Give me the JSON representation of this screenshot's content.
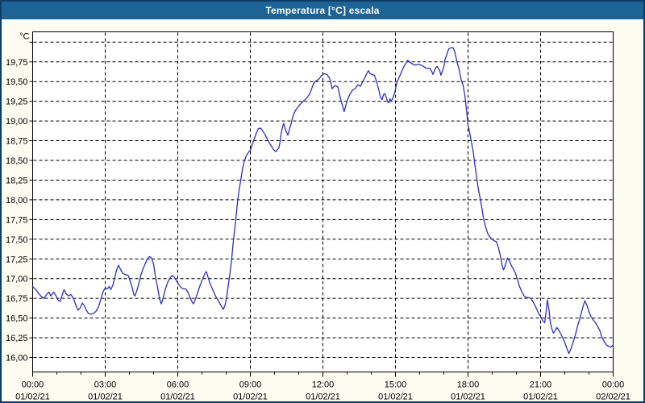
{
  "window": {
    "title": "Temperatura [°C] escala"
  },
  "colors": {
    "window_border": "#0d3c6b",
    "title_bar_bg": "#1d6496",
    "title_text": "#ffffff",
    "margin_bg": "#fcfcf1",
    "plot_bg": "#ffffff",
    "grid_and_text": "#000000",
    "series_line": "#2e2ec0"
  },
  "chart_data": {
    "type": "line",
    "title": "Temperatura [°C] escala",
    "grid": {
      "style": "dashed",
      "color": "#000000",
      "visible": true
    },
    "legend": "none",
    "y_axis": {
      "unit_label": "°C",
      "min": 16.0,
      "max": 20.0,
      "tick_step": 0.25,
      "decimal_separator": ",",
      "tick_labels": [
        "16,00",
        "16,25",
        "16,50",
        "16,75",
        "17,00",
        "17,25",
        "17,50",
        "17,75",
        "18,00",
        "18,25",
        "18,50",
        "18,75",
        "19,00",
        "19,25",
        "19,50",
        "19,75"
      ],
      "unlabeled_top_gridline": 20.0
    },
    "x_axis": {
      "range_hours": [
        0,
        24
      ],
      "minor_tick_interval_hours": 1,
      "major_ticks": [
        {
          "hour": 0,
          "time": "00:00",
          "date": "01/02/21"
        },
        {
          "hour": 3,
          "time": "03:00",
          "date": "01/02/21"
        },
        {
          "hour": 6,
          "time": "06:00",
          "date": "01/02/21"
        },
        {
          "hour": 9,
          "time": "09:00",
          "date": "01/02/21"
        },
        {
          "hour": 12,
          "time": "12:00",
          "date": "01/02/21"
        },
        {
          "hour": 15,
          "time": "15:00",
          "date": "01/02/21"
        },
        {
          "hour": 18,
          "time": "18:00",
          "date": "01/02/21"
        },
        {
          "hour": 21,
          "time": "21:00",
          "date": "01/02/21"
        },
        {
          "hour": 24,
          "time": "00:00",
          "date": "02/02/21"
        }
      ]
    },
    "series": [
      {
        "name": "Temperatura",
        "color": "#2e2ec0",
        "points": [
          [
            0.0,
            16.9
          ],
          [
            0.13,
            16.86
          ],
          [
            0.25,
            16.81
          ],
          [
            0.37,
            16.77
          ],
          [
            0.47,
            16.75
          ],
          [
            0.58,
            16.8
          ],
          [
            0.67,
            16.83
          ],
          [
            0.75,
            16.78
          ],
          [
            0.87,
            16.83
          ],
          [
            0.97,
            16.78
          ],
          [
            1.05,
            16.73
          ],
          [
            1.13,
            16.71
          ],
          [
            1.22,
            16.79
          ],
          [
            1.3,
            16.86
          ],
          [
            1.38,
            16.81
          ],
          [
            1.47,
            16.78
          ],
          [
            1.58,
            16.8
          ],
          [
            1.7,
            16.74
          ],
          [
            1.8,
            16.65
          ],
          [
            1.88,
            16.6
          ],
          [
            1.97,
            16.63
          ],
          [
            2.05,
            16.69
          ],
          [
            2.13,
            16.66
          ],
          [
            2.22,
            16.6
          ],
          [
            2.3,
            16.56
          ],
          [
            2.42,
            16.55
          ],
          [
            2.53,
            16.56
          ],
          [
            2.63,
            16.59
          ],
          [
            2.72,
            16.64
          ],
          [
            2.82,
            16.74
          ],
          [
            2.92,
            16.84
          ],
          [
            3.0,
            16.88
          ],
          [
            3.08,
            16.87
          ],
          [
            3.17,
            16.9
          ],
          [
            3.23,
            16.86
          ],
          [
            3.32,
            16.92
          ],
          [
            3.4,
            17.02
          ],
          [
            3.48,
            17.12
          ],
          [
            3.55,
            17.17
          ],
          [
            3.63,
            17.12
          ],
          [
            3.72,
            17.07
          ],
          [
            3.83,
            17.05
          ],
          [
            3.95,
            17.04
          ],
          [
            4.03,
            16.97
          ],
          [
            4.12,
            16.88
          ],
          [
            4.18,
            16.8
          ],
          [
            4.23,
            16.78
          ],
          [
            4.32,
            16.86
          ],
          [
            4.4,
            16.95
          ],
          [
            4.48,
            17.05
          ],
          [
            4.57,
            17.13
          ],
          [
            4.67,
            17.2
          ],
          [
            4.75,
            17.25
          ],
          [
            4.83,
            17.28
          ],
          [
            4.92,
            17.26
          ],
          [
            5.0,
            17.18
          ],
          [
            5.08,
            17.02
          ],
          [
            5.17,
            16.88
          ],
          [
            5.25,
            16.74
          ],
          [
            5.32,
            16.68
          ],
          [
            5.4,
            16.76
          ],
          [
            5.48,
            16.86
          ],
          [
            5.58,
            16.95
          ],
          [
            5.68,
            17.01
          ],
          [
            5.77,
            17.04
          ],
          [
            5.85,
            17.02
          ],
          [
            5.95,
            16.97
          ],
          [
            6.03,
            16.93
          ],
          [
            6.13,
            16.89
          ],
          [
            6.23,
            16.87
          ],
          [
            6.33,
            16.87
          ],
          [
            6.43,
            16.82
          ],
          [
            6.52,
            16.75
          ],
          [
            6.6,
            16.7
          ],
          [
            6.65,
            16.68
          ],
          [
            6.73,
            16.74
          ],
          [
            6.83,
            16.83
          ],
          [
            6.93,
            16.92
          ],
          [
            7.03,
            17.0
          ],
          [
            7.13,
            17.07
          ],
          [
            7.18,
            17.09
          ],
          [
            7.25,
            17.02
          ],
          [
            7.33,
            16.94
          ],
          [
            7.43,
            16.87
          ],
          [
            7.53,
            16.8
          ],
          [
            7.63,
            16.74
          ],
          [
            7.73,
            16.69
          ],
          [
            7.82,
            16.64
          ],
          [
            7.88,
            16.61
          ],
          [
            7.95,
            16.66
          ],
          [
            8.02,
            16.76
          ],
          [
            8.08,
            16.9
          ],
          [
            8.15,
            17.05
          ],
          [
            8.22,
            17.22
          ],
          [
            8.28,
            17.42
          ],
          [
            8.35,
            17.62
          ],
          [
            8.42,
            17.82
          ],
          [
            8.48,
            18.0
          ],
          [
            8.55,
            18.15
          ],
          [
            8.62,
            18.28
          ],
          [
            8.68,
            18.4
          ],
          [
            8.75,
            18.49
          ],
          [
            8.83,
            18.56
          ],
          [
            8.92,
            18.6
          ],
          [
            9.0,
            18.63
          ],
          [
            9.08,
            18.7
          ],
          [
            9.17,
            18.78
          ],
          [
            9.25,
            18.85
          ],
          [
            9.33,
            18.9
          ],
          [
            9.42,
            18.91
          ],
          [
            9.5,
            18.88
          ],
          [
            9.62,
            18.82
          ],
          [
            9.72,
            18.76
          ],
          [
            9.83,
            18.7
          ],
          [
            9.95,
            18.64
          ],
          [
            10.05,
            18.61
          ],
          [
            10.13,
            18.64
          ],
          [
            10.18,
            18.66
          ],
          [
            10.22,
            18.72
          ],
          [
            10.28,
            18.85
          ],
          [
            10.33,
            18.92
          ],
          [
            10.38,
            18.97
          ],
          [
            10.45,
            18.89
          ],
          [
            10.55,
            18.82
          ],
          [
            10.67,
            18.95
          ],
          [
            10.78,
            19.08
          ],
          [
            10.88,
            19.14
          ],
          [
            11.0,
            19.19
          ],
          [
            11.12,
            19.23
          ],
          [
            11.22,
            19.26
          ],
          [
            11.33,
            19.29
          ],
          [
            11.45,
            19.34
          ],
          [
            11.5,
            19.38
          ],
          [
            11.62,
            19.48
          ],
          [
            11.72,
            19.51
          ],
          [
            11.83,
            19.53
          ],
          [
            11.95,
            19.58
          ],
          [
            12.05,
            19.6
          ],
          [
            12.17,
            19.59
          ],
          [
            12.28,
            19.54
          ],
          [
            12.33,
            19.48
          ],
          [
            12.38,
            19.41
          ],
          [
            12.5,
            19.45
          ],
          [
            12.62,
            19.43
          ],
          [
            12.72,
            19.29
          ],
          [
            12.83,
            19.17
          ],
          [
            12.88,
            19.12
          ],
          [
            13.0,
            19.26
          ],
          [
            13.12,
            19.34
          ],
          [
            13.22,
            19.39
          ],
          [
            13.33,
            19.41
          ],
          [
            13.45,
            19.46
          ],
          [
            13.55,
            19.44
          ],
          [
            13.67,
            19.51
          ],
          [
            13.78,
            19.58
          ],
          [
            13.88,
            19.64
          ],
          [
            13.95,
            19.6
          ],
          [
            14.05,
            19.59
          ],
          [
            14.13,
            19.58
          ],
          [
            14.22,
            19.5
          ],
          [
            14.28,
            19.43
          ],
          [
            14.33,
            19.37
          ],
          [
            14.38,
            19.3
          ],
          [
            14.45,
            19.27
          ],
          [
            14.5,
            19.33
          ],
          [
            14.55,
            19.35
          ],
          [
            14.62,
            19.3
          ],
          [
            14.67,
            19.25
          ],
          [
            14.72,
            19.23
          ],
          [
            14.78,
            19.28
          ],
          [
            14.83,
            19.25
          ],
          [
            14.88,
            19.28
          ],
          [
            14.95,
            19.34
          ],
          [
            15.0,
            19.4
          ],
          [
            15.05,
            19.48
          ],
          [
            15.12,
            19.53
          ],
          [
            15.22,
            19.6
          ],
          [
            15.33,
            19.68
          ],
          [
            15.45,
            19.74
          ],
          [
            15.5,
            19.77
          ],
          [
            15.62,
            19.74
          ],
          [
            15.72,
            19.72
          ],
          [
            15.83,
            19.71
          ],
          [
            15.95,
            19.72
          ],
          [
            16.05,
            19.71
          ],
          [
            16.17,
            19.69
          ],
          [
            16.28,
            19.67
          ],
          [
            16.42,
            19.67
          ],
          [
            16.5,
            19.63
          ],
          [
            16.55,
            19.59
          ],
          [
            16.67,
            19.68
          ],
          [
            16.72,
            19.69
          ],
          [
            16.83,
            19.64
          ],
          [
            16.88,
            19.58
          ],
          [
            17.0,
            19.69
          ],
          [
            17.05,
            19.78
          ],
          [
            17.12,
            19.84
          ],
          [
            17.17,
            19.89
          ],
          [
            17.22,
            19.92
          ],
          [
            17.33,
            19.93
          ],
          [
            17.38,
            19.93
          ],
          [
            17.45,
            19.88
          ],
          [
            17.5,
            19.81
          ],
          [
            17.55,
            19.74
          ],
          [
            17.62,
            19.67
          ],
          [
            17.67,
            19.59
          ],
          [
            17.72,
            19.52
          ],
          [
            17.8,
            19.45
          ],
          [
            17.88,
            19.3
          ],
          [
            17.95,
            19.1
          ],
          [
            18.0,
            18.95
          ],
          [
            18.05,
            18.88
          ],
          [
            18.13,
            18.75
          ],
          [
            18.22,
            18.6
          ],
          [
            18.28,
            18.45
          ],
          [
            18.35,
            18.3
          ],
          [
            18.42,
            18.15
          ],
          [
            18.5,
            18.02
          ],
          [
            18.57,
            17.9
          ],
          [
            18.63,
            17.78
          ],
          [
            18.73,
            17.65
          ],
          [
            18.83,
            17.56
          ],
          [
            18.92,
            17.52
          ],
          [
            19.0,
            17.5
          ],
          [
            19.08,
            17.48
          ],
          [
            19.17,
            17.47
          ],
          [
            19.25,
            17.4
          ],
          [
            19.33,
            17.3
          ],
          [
            19.42,
            17.15
          ],
          [
            19.47,
            17.11
          ],
          [
            19.55,
            17.18
          ],
          [
            19.63,
            17.26
          ],
          [
            19.72,
            17.22
          ],
          [
            19.8,
            17.16
          ],
          [
            19.88,
            17.12
          ],
          [
            19.97,
            17.06
          ],
          [
            20.05,
            16.98
          ],
          [
            20.13,
            16.9
          ],
          [
            20.23,
            16.83
          ],
          [
            20.32,
            16.78
          ],
          [
            20.4,
            16.76
          ],
          [
            20.5,
            16.76
          ],
          [
            20.6,
            16.75
          ],
          [
            20.7,
            16.7
          ],
          [
            20.8,
            16.64
          ],
          [
            20.9,
            16.57
          ],
          [
            21.0,
            16.52
          ],
          [
            21.08,
            16.47
          ],
          [
            21.17,
            16.44
          ],
          [
            21.23,
            16.58
          ],
          [
            21.28,
            16.73
          ],
          [
            21.35,
            16.6
          ],
          [
            21.4,
            16.45
          ],
          [
            21.47,
            16.36
          ],
          [
            21.53,
            16.31
          ],
          [
            21.6,
            16.34
          ],
          [
            21.67,
            16.38
          ],
          [
            21.75,
            16.35
          ],
          [
            21.83,
            16.3
          ],
          [
            21.92,
            16.25
          ],
          [
            22.0,
            16.19
          ],
          [
            22.08,
            16.12
          ],
          [
            22.17,
            16.05
          ],
          [
            22.27,
            16.12
          ],
          [
            22.35,
            16.2
          ],
          [
            22.45,
            16.3
          ],
          [
            22.53,
            16.4
          ],
          [
            22.63,
            16.5
          ],
          [
            22.73,
            16.62
          ],
          [
            22.83,
            16.72
          ],
          [
            22.92,
            16.66
          ],
          [
            23.0,
            16.58
          ],
          [
            23.08,
            16.52
          ],
          [
            23.17,
            16.48
          ],
          [
            23.27,
            16.44
          ],
          [
            23.35,
            16.4
          ],
          [
            23.45,
            16.34
          ],
          [
            23.53,
            16.26
          ],
          [
            23.63,
            16.2
          ],
          [
            23.72,
            16.16
          ],
          [
            23.82,
            16.14
          ],
          [
            23.9,
            16.13
          ],
          [
            24.0,
            16.16
          ]
        ]
      }
    ]
  }
}
